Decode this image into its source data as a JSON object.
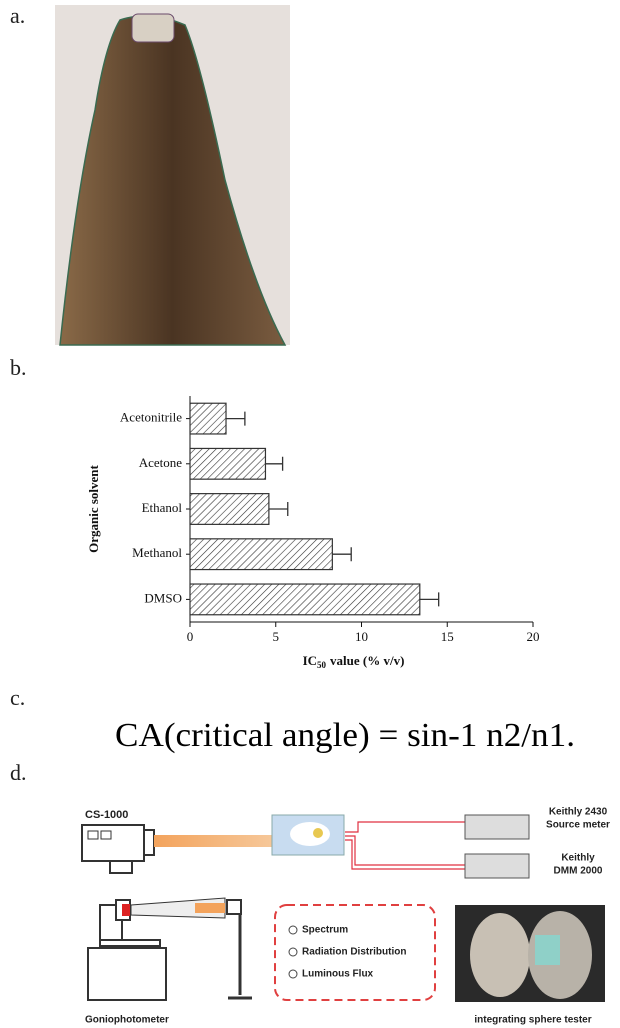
{
  "panels": {
    "a": "a.",
    "b": "b.",
    "c": "c.",
    "d": "d."
  },
  "chart_data": {
    "type": "hbar",
    "categories": [
      "Acetonitrile",
      "Acetone",
      "Ethanol",
      "Methanol",
      "DMSO"
    ],
    "values": [
      2.1,
      4.4,
      4.6,
      8.3,
      13.4
    ],
    "errors": [
      1.1,
      1.0,
      1.1,
      1.1,
      1.1
    ],
    "color": "#333333",
    "xlim": [
      0,
      20
    ],
    "xticks": [
      0,
      5,
      10,
      15,
      20
    ],
    "xlabel": {
      "main": "IC",
      "sub": "50",
      "rest": "value (% v/v)"
    },
    "ylabel": "Organic solvent"
  },
  "equation": "CA(critical angle) = sin-1 n2/n1.",
  "diagram": {
    "camera": "CS-1000",
    "meter1": [
      "Keithly 2430",
      "Source meter"
    ],
    "meter2": [
      "Keithly",
      "DMM 2000"
    ],
    "items": [
      "Spectrum",
      "Radiation Distribution",
      "Luminous Flux"
    ],
    "gonio": "Goniophotometer",
    "sphere": "integrating sphere tester"
  }
}
